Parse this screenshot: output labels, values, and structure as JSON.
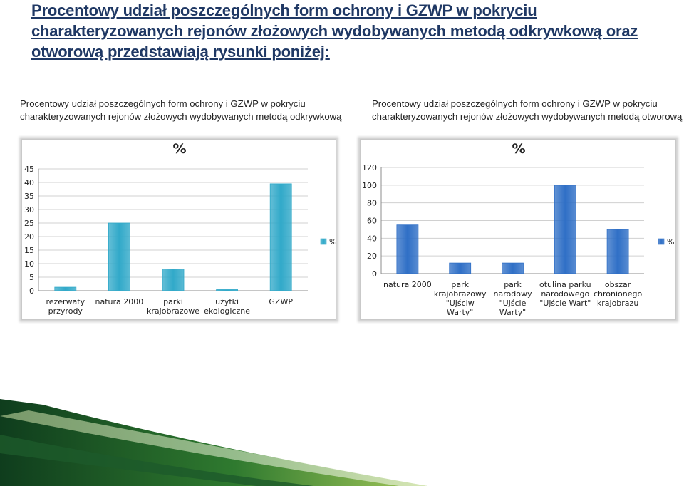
{
  "heading": "Procentowy udział poszczególnych form ochrony i GZWP w pokryciu charakteryzowanych rejonów złożowych wydobywanych metodą odkrywkową oraz otworową przedstawiają rysunki poniżej:",
  "chart_data": [
    {
      "type": "bar",
      "caption_lines": [
        "Procentowy udział poszczególnych form ochrony  i GZWP w pokryciu",
        "charakteryzowanych rejonów złożowych wydobywanych metodą odkrywkową"
      ],
      "title": "%",
      "categories": [
        [
          "rezerwaty",
          "przyrody"
        ],
        [
          "natura 2000"
        ],
        [
          "parki",
          "krajobrazowe"
        ],
        [
          "użytki",
          "ekologiczne"
        ],
        [
          "GZWP"
        ]
      ],
      "series": [
        {
          "name": "%",
          "values": [
            1.3,
            25,
            8,
            0.4,
            39.5
          ]
        }
      ],
      "yticks": [
        "0",
        "5",
        "10",
        "15",
        "20",
        "25",
        "30",
        "35",
        "40",
        "45"
      ],
      "ylim": [
        0,
        45
      ],
      "grid": true,
      "legend": "right",
      "color": "#31a9c9"
    },
    {
      "type": "bar",
      "caption_lines": [
        "Procentowy udział poszczególnych form ochrony i GZWP w pokryciu",
        "charakteryzowanych rejonów złożowych wydobywanych metodą otworową"
      ],
      "title": "%",
      "categories": [
        [
          "natura 2000"
        ],
        [
          "park",
          "krajobrazowy",
          "\"Ujściw",
          "Warty\""
        ],
        [
          "park",
          "narodowy",
          "\"Ujście",
          "Warty\""
        ],
        [
          "otulina parku",
          "narodowego",
          "\"Ujście Wart\""
        ],
        [
          "obszar",
          "chronionego",
          "krajobrazu"
        ]
      ],
      "series": [
        {
          "name": "%",
          "values": [
            55,
            12,
            12,
            100,
            50
          ]
        }
      ],
      "yticks": [
        "0",
        "20",
        "40",
        "60",
        "80",
        "100",
        "120"
      ],
      "ylim": [
        0,
        120
      ],
      "grid": true,
      "legend": "right",
      "color": "#2f6fc6"
    }
  ]
}
